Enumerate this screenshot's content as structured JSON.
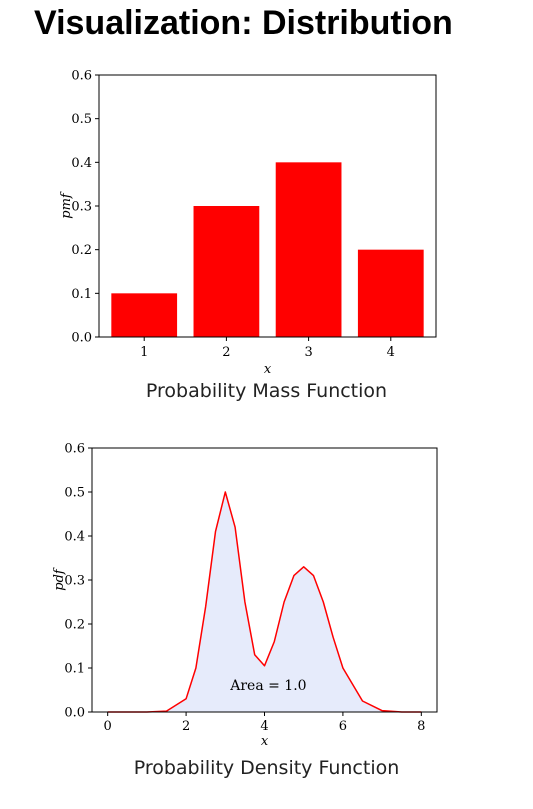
{
  "title": "Visualization: Distribution",
  "chart_data": [
    {
      "type": "bar",
      "categories": [
        "1",
        "2",
        "3",
        "4"
      ],
      "values": [
        0.1,
        0.3,
        0.4,
        0.2
      ],
      "xlabel": "x",
      "ylabel": "pmf",
      "ylim": [
        0,
        0.6
      ],
      "yticks": [
        "0.0",
        "0.1",
        "0.2",
        "0.3",
        "0.4",
        "0.5",
        "0.6"
      ],
      "bar_color": "#ff0000",
      "grid": false,
      "caption": "Probability Mass Function"
    },
    {
      "type": "area",
      "xlabel": "x",
      "ylabel": "pdf",
      "xlim": [
        -0.4,
        8.4
      ],
      "ylim": [
        0,
        0.6
      ],
      "xticks": [
        "0",
        "2",
        "4",
        "6",
        "8"
      ],
      "yticks": [
        "0.0",
        "0.1",
        "0.2",
        "0.3",
        "0.4",
        "0.5",
        "0.6"
      ],
      "series": [
        {
          "x": [
            0,
            1,
            1.5,
            2,
            2.25,
            2.5,
            2.75,
            3,
            3.25,
            3.5,
            3.75,
            4,
            4.25,
            4.5,
            4.75,
            5,
            5.25,
            5.5,
            5.75,
            6,
            6.5,
            7,
            7.5,
            8
          ],
          "values": [
            0,
            0,
            0.002,
            0.03,
            0.1,
            0.24,
            0.41,
            0.5,
            0.42,
            0.25,
            0.13,
            0.105,
            0.16,
            0.25,
            0.31,
            0.33,
            0.31,
            0.25,
            0.17,
            0.1,
            0.025,
            0.003,
            0,
            0
          ]
        }
      ],
      "line_color": "#ff0000",
      "fill_color": "#e6ebfb",
      "annotation": "Area = 1.0",
      "annotation_x": 4.1,
      "annotation_y": 0.05,
      "grid": false,
      "caption": "Probability Density Function"
    }
  ]
}
